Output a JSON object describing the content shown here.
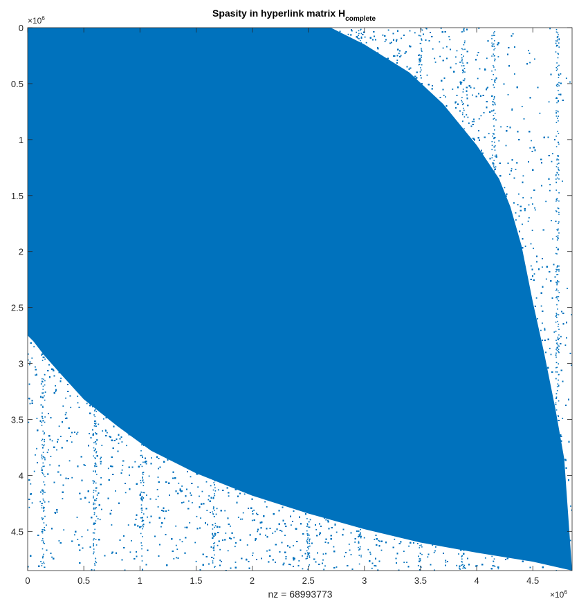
{
  "chart_data": {
    "type": "scatter",
    "subtype": "sparsity-pattern",
    "title": {
      "main": "Spasity in hyperlink matrix H",
      "subscript": "complete"
    },
    "xlabel": "nz = 68993773",
    "nz": 68993773,
    "matrix_size": 4850000,
    "xlim": [
      0,
      4850000
    ],
    "ylim": [
      0,
      4850000
    ],
    "y_axis_reversed": true,
    "x_exponent_label": "×10",
    "x_exponent_power": "6",
    "y_exponent_label": "×10",
    "y_exponent_power": "6",
    "x_ticks": [
      0,
      500000,
      1000000,
      1500000,
      2000000,
      2500000,
      3000000,
      3500000,
      4000000,
      4500000
    ],
    "x_tick_labels": [
      "0",
      "0.5",
      "1",
      "1.5",
      "2",
      "2.5",
      "3",
      "3.5",
      "4",
      "4.5"
    ],
    "y_ticks": [
      0,
      500000,
      1000000,
      1500000,
      2000000,
      2500000,
      3000000,
      3500000,
      4000000,
      4500000
    ],
    "y_tick_labels": [
      "0",
      "0.5",
      "1",
      "1.5",
      "2",
      "2.5",
      "3",
      "3.5",
      "4",
      "4.5"
    ],
    "marker_color": "#0072BD",
    "grid": false,
    "dense_region_upper_boundary": {
      "x": [
        2700000,
        3000000,
        3400000,
        3700000,
        4000000,
        4200000,
        4300000,
        4400000,
        4500000,
        4600000,
        4700000,
        4780000,
        4850000
      ],
      "y": [
        0,
        150000,
        400000,
        680000,
        1050000,
        1350000,
        1600000,
        1950000,
        2450000,
        2900000,
        3400000,
        3850000,
        4850000
      ]
    },
    "dense_region_lower_boundary": {
      "x": [
        0,
        50000,
        150000,
        300000,
        500000,
        800000,
        1100000,
        1500000,
        2000000,
        2500000,
        3000000,
        3500000,
        4000000,
        4500000,
        4850000
      ],
      "y": [
        2750000,
        2800000,
        2930000,
        3100000,
        3320000,
        3560000,
        3780000,
        3980000,
        4180000,
        4340000,
        4480000,
        4600000,
        4690000,
        4770000,
        4850000
      ]
    }
  }
}
